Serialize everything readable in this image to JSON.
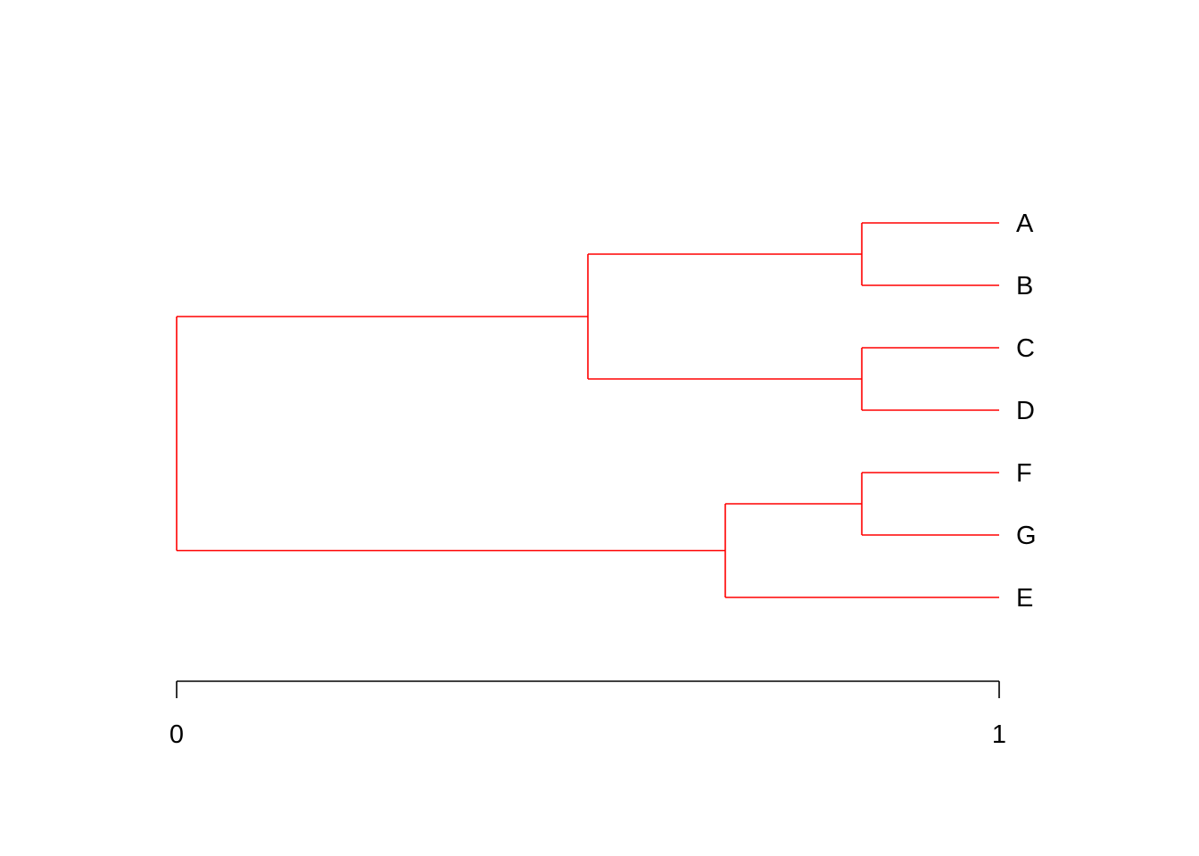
{
  "chart_data": {
    "type": "dendrogram",
    "orientation": "horizontal",
    "branch_color": "#ff0000",
    "axis": {
      "range": [
        0,
        1
      ],
      "ticks": [
        0,
        1
      ],
      "tick_labels": [
        "0",
        "1"
      ]
    },
    "tree": {
      "height": 0,
      "children": [
        {
          "height": 0.5,
          "children": [
            {
              "height": 0.833,
              "children": [
                {
                  "label": "A"
                },
                {
                  "label": "B"
                }
              ]
            },
            {
              "height": 0.833,
              "children": [
                {
                  "label": "C"
                },
                {
                  "label": "D"
                }
              ]
            }
          ]
        },
        {
          "height": 0.667,
          "children": [
            {
              "height": 0.833,
              "children": [
                {
                  "label": "F"
                },
                {
                  "label": "G"
                }
              ]
            },
            {
              "label": "E"
            }
          ]
        }
      ]
    },
    "leaf_height": 1
  }
}
